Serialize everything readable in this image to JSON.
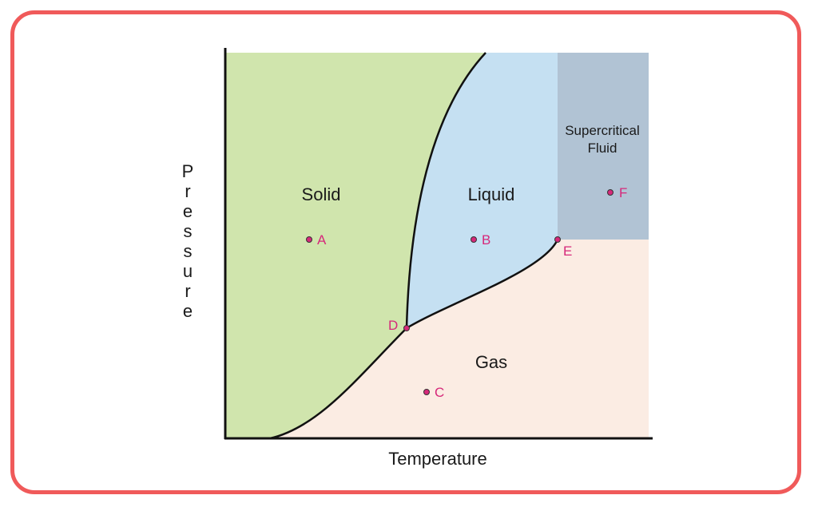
{
  "diagram": {
    "y_axis_label_letters": [
      "P",
      "r",
      "e",
      "s",
      "s",
      "u",
      "r",
      "e"
    ],
    "x_axis_label": "Temperature",
    "regions": {
      "solid": "Solid",
      "liquid": "Liquid",
      "gas": "Gas",
      "supercritical_line1": "Supercritical",
      "supercritical_line2": "Fluid"
    },
    "points": {
      "A": "A",
      "B": "B",
      "C": "C",
      "D": "D",
      "E": "E",
      "F": "F"
    },
    "colors": {
      "solid": "#d0e5ad",
      "liquid": "#c5e0f2",
      "gas": "#fbece3",
      "supercritical": "#b1c3d4",
      "point": "#d6287a",
      "frame": "#f05a5a"
    }
  }
}
